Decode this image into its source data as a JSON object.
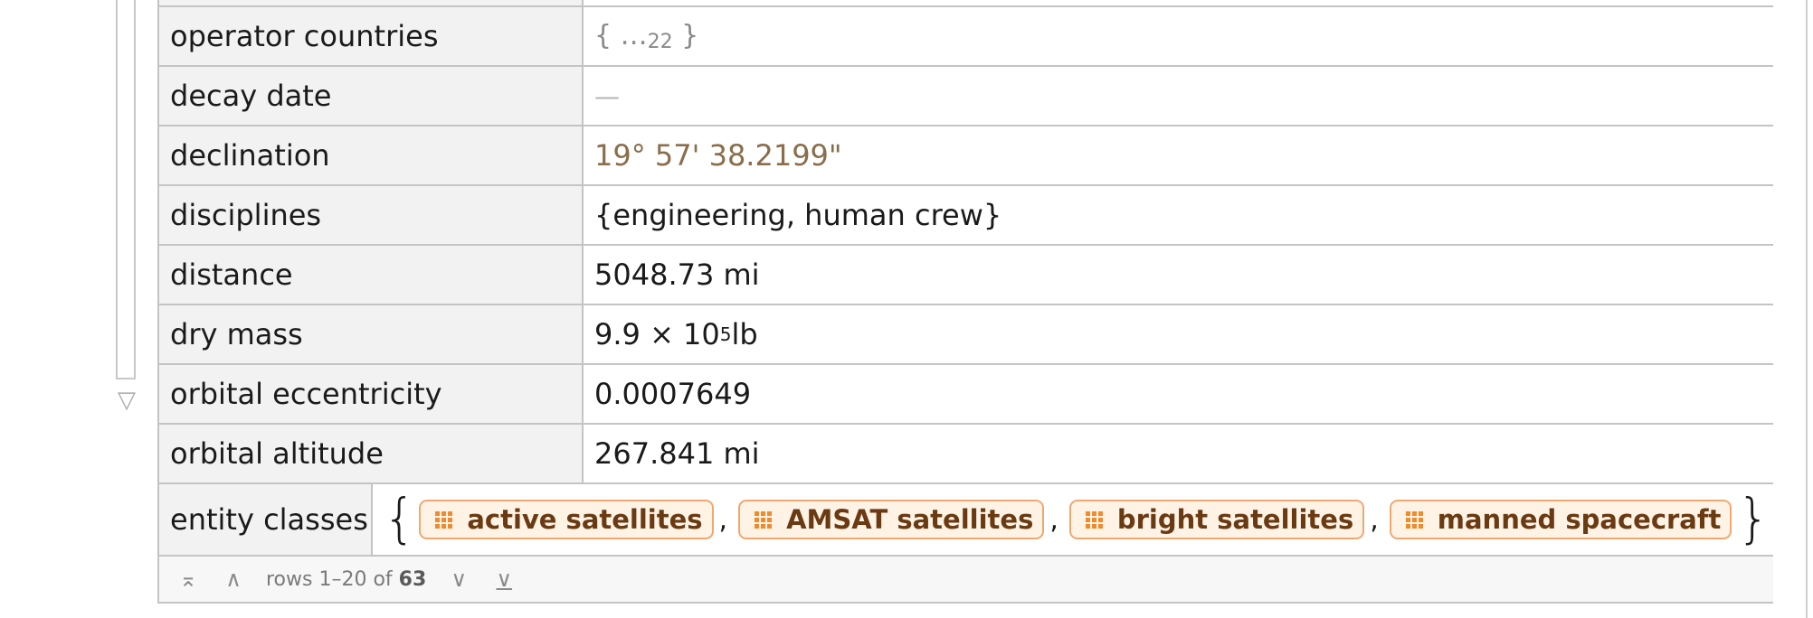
{
  "rows": [
    {
      "key": "operator countries",
      "elide_open": "{ …",
      "elide_count": "22",
      "elide_close": " }"
    },
    {
      "key": "decay date",
      "value": "—"
    },
    {
      "key": "declination",
      "value": "19° 57' 38.2199\""
    },
    {
      "key": "disciplines",
      "value": "{engineering, human crew}"
    },
    {
      "key": "distance",
      "value": "5048.73 mi"
    },
    {
      "key": "dry mass",
      "mantissa": "9.9 × 10",
      "exponent": "5",
      "unit": " lb"
    },
    {
      "key": "orbital eccentricity",
      "value": "0.0007649"
    },
    {
      "key": "orbital altitude",
      "value": "267.841 mi"
    },
    {
      "key": "entity classes",
      "open_brace": "{",
      "close_brace": "}",
      "separator": ",",
      "chips": [
        "active satellites",
        "AMSAT satellites",
        "bright satellites",
        "manned spacecraft"
      ]
    }
  ],
  "footer": {
    "first_icon": "first-page-icon",
    "prev_icon": "previous-page-icon",
    "next_icon": "next-page-icon",
    "last_icon": "last-page-icon",
    "rows_label": "rows 1–20 of ",
    "total": "63"
  },
  "colors": {
    "key_bg": "#f2f2f2",
    "grid_line": "#c4c4c4",
    "angle_value": "#8a6d4b",
    "chip_border": "#f0a870",
    "chip_bg": "#fff3e6",
    "chip_icon": "#f08a2c"
  }
}
